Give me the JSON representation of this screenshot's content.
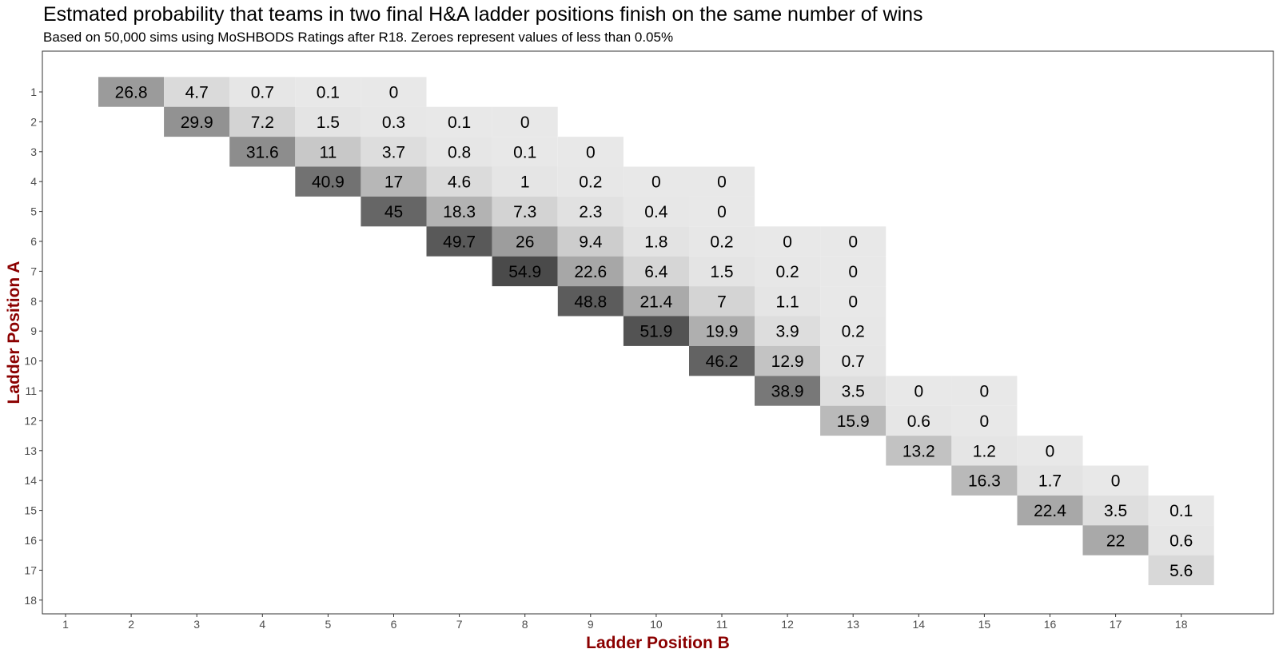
{
  "chart_data": {
    "type": "heatmap",
    "title": "Estmated probability that teams in two final H&A ladder positions finish on the same number of wins",
    "subtitle": "Based on 50,000 sims using MoSHBODS Ratings after R18. Zeroes represent values of less than 0.05%",
    "xlabel": "Ladder Position B",
    "ylabel": "Ladder Position A",
    "x_categories": [
      "1",
      "2",
      "3",
      "4",
      "5",
      "6",
      "7",
      "8",
      "9",
      "10",
      "11",
      "12",
      "13",
      "14",
      "15",
      "16",
      "17",
      "18"
    ],
    "y_categories": [
      "1",
      "2",
      "3",
      "4",
      "5",
      "6",
      "7",
      "8",
      "9",
      "10",
      "11",
      "12",
      "13",
      "14",
      "15",
      "16",
      "17",
      "18"
    ],
    "y_order": "top-to-bottom",
    "color_scale": {
      "low": "#e8e8e8",
      "high": "#4a4a4a",
      "min": 0,
      "max": 54.9
    },
    "grid": false,
    "cells": [
      {
        "a": 1,
        "b": 2,
        "value": 26.8
      },
      {
        "a": 1,
        "b": 3,
        "value": 4.7
      },
      {
        "a": 1,
        "b": 4,
        "value": 0.7
      },
      {
        "a": 1,
        "b": 5,
        "value": 0.1
      },
      {
        "a": 1,
        "b": 6,
        "value": 0
      },
      {
        "a": 2,
        "b": 3,
        "value": 29.9
      },
      {
        "a": 2,
        "b": 4,
        "value": 7.2
      },
      {
        "a": 2,
        "b": 5,
        "value": 1.5
      },
      {
        "a": 2,
        "b": 6,
        "value": 0.3
      },
      {
        "a": 2,
        "b": 7,
        "value": 0.1
      },
      {
        "a": 2,
        "b": 8,
        "value": 0
      },
      {
        "a": 3,
        "b": 4,
        "value": 31.6
      },
      {
        "a": 3,
        "b": 5,
        "value": 11
      },
      {
        "a": 3,
        "b": 6,
        "value": 3.7
      },
      {
        "a": 3,
        "b": 7,
        "value": 0.8
      },
      {
        "a": 3,
        "b": 8,
        "value": 0.1
      },
      {
        "a": 3,
        "b": 9,
        "value": 0
      },
      {
        "a": 4,
        "b": 5,
        "value": 40.9
      },
      {
        "a": 4,
        "b": 6,
        "value": 17
      },
      {
        "a": 4,
        "b": 7,
        "value": 4.6
      },
      {
        "a": 4,
        "b": 8,
        "value": 1
      },
      {
        "a": 4,
        "b": 9,
        "value": 0.2
      },
      {
        "a": 4,
        "b": 10,
        "value": 0
      },
      {
        "a": 4,
        "b": 11,
        "value": 0
      },
      {
        "a": 5,
        "b": 6,
        "value": 45
      },
      {
        "a": 5,
        "b": 7,
        "value": 18.3
      },
      {
        "a": 5,
        "b": 8,
        "value": 7.3
      },
      {
        "a": 5,
        "b": 9,
        "value": 2.3
      },
      {
        "a": 5,
        "b": 10,
        "value": 0.4
      },
      {
        "a": 5,
        "b": 11,
        "value": 0
      },
      {
        "a": 6,
        "b": 7,
        "value": 49.7
      },
      {
        "a": 6,
        "b": 8,
        "value": 26
      },
      {
        "a": 6,
        "b": 9,
        "value": 9.4
      },
      {
        "a": 6,
        "b": 10,
        "value": 1.8
      },
      {
        "a": 6,
        "b": 11,
        "value": 0.2
      },
      {
        "a": 6,
        "b": 12,
        "value": 0
      },
      {
        "a": 6,
        "b": 13,
        "value": 0
      },
      {
        "a": 7,
        "b": 8,
        "value": 54.9
      },
      {
        "a": 7,
        "b": 9,
        "value": 22.6
      },
      {
        "a": 7,
        "b": 10,
        "value": 6.4
      },
      {
        "a": 7,
        "b": 11,
        "value": 1.5
      },
      {
        "a": 7,
        "b": 12,
        "value": 0.2
      },
      {
        "a": 7,
        "b": 13,
        "value": 0
      },
      {
        "a": 8,
        "b": 9,
        "value": 48.8
      },
      {
        "a": 8,
        "b": 10,
        "value": 21.4
      },
      {
        "a": 8,
        "b": 11,
        "value": 7
      },
      {
        "a": 8,
        "b": 12,
        "value": 1.1
      },
      {
        "a": 8,
        "b": 13,
        "value": 0
      },
      {
        "a": 9,
        "b": 10,
        "value": 51.9
      },
      {
        "a": 9,
        "b": 11,
        "value": 19.9
      },
      {
        "a": 9,
        "b": 12,
        "value": 3.9
      },
      {
        "a": 9,
        "b": 13,
        "value": 0.2
      },
      {
        "a": 10,
        "b": 11,
        "value": 46.2
      },
      {
        "a": 10,
        "b": 12,
        "value": 12.9
      },
      {
        "a": 10,
        "b": 13,
        "value": 0.7
      },
      {
        "a": 11,
        "b": 12,
        "value": 38.9
      },
      {
        "a": 11,
        "b": 13,
        "value": 3.5
      },
      {
        "a": 11,
        "b": 14,
        "value": 0
      },
      {
        "a": 11,
        "b": 15,
        "value": 0
      },
      {
        "a": 12,
        "b": 13,
        "value": 15.9
      },
      {
        "a": 12,
        "b": 14,
        "value": 0.6
      },
      {
        "a": 12,
        "b": 15,
        "value": 0
      },
      {
        "a": 13,
        "b": 14,
        "value": 13.2
      },
      {
        "a": 13,
        "b": 15,
        "value": 1.2
      },
      {
        "a": 13,
        "b": 16,
        "value": 0
      },
      {
        "a": 14,
        "b": 15,
        "value": 16.3
      },
      {
        "a": 14,
        "b": 16,
        "value": 1.7
      },
      {
        "a": 14,
        "b": 17,
        "value": 0
      },
      {
        "a": 15,
        "b": 16,
        "value": 22.4
      },
      {
        "a": 15,
        "b": 17,
        "value": 3.5
      },
      {
        "a": 15,
        "b": 18,
        "value": 0.1
      },
      {
        "a": 16,
        "b": 17,
        "value": 22
      },
      {
        "a": 16,
        "b": 18,
        "value": 0.6
      },
      {
        "a": 17,
        "b": 18,
        "value": 5.6
      }
    ]
  }
}
